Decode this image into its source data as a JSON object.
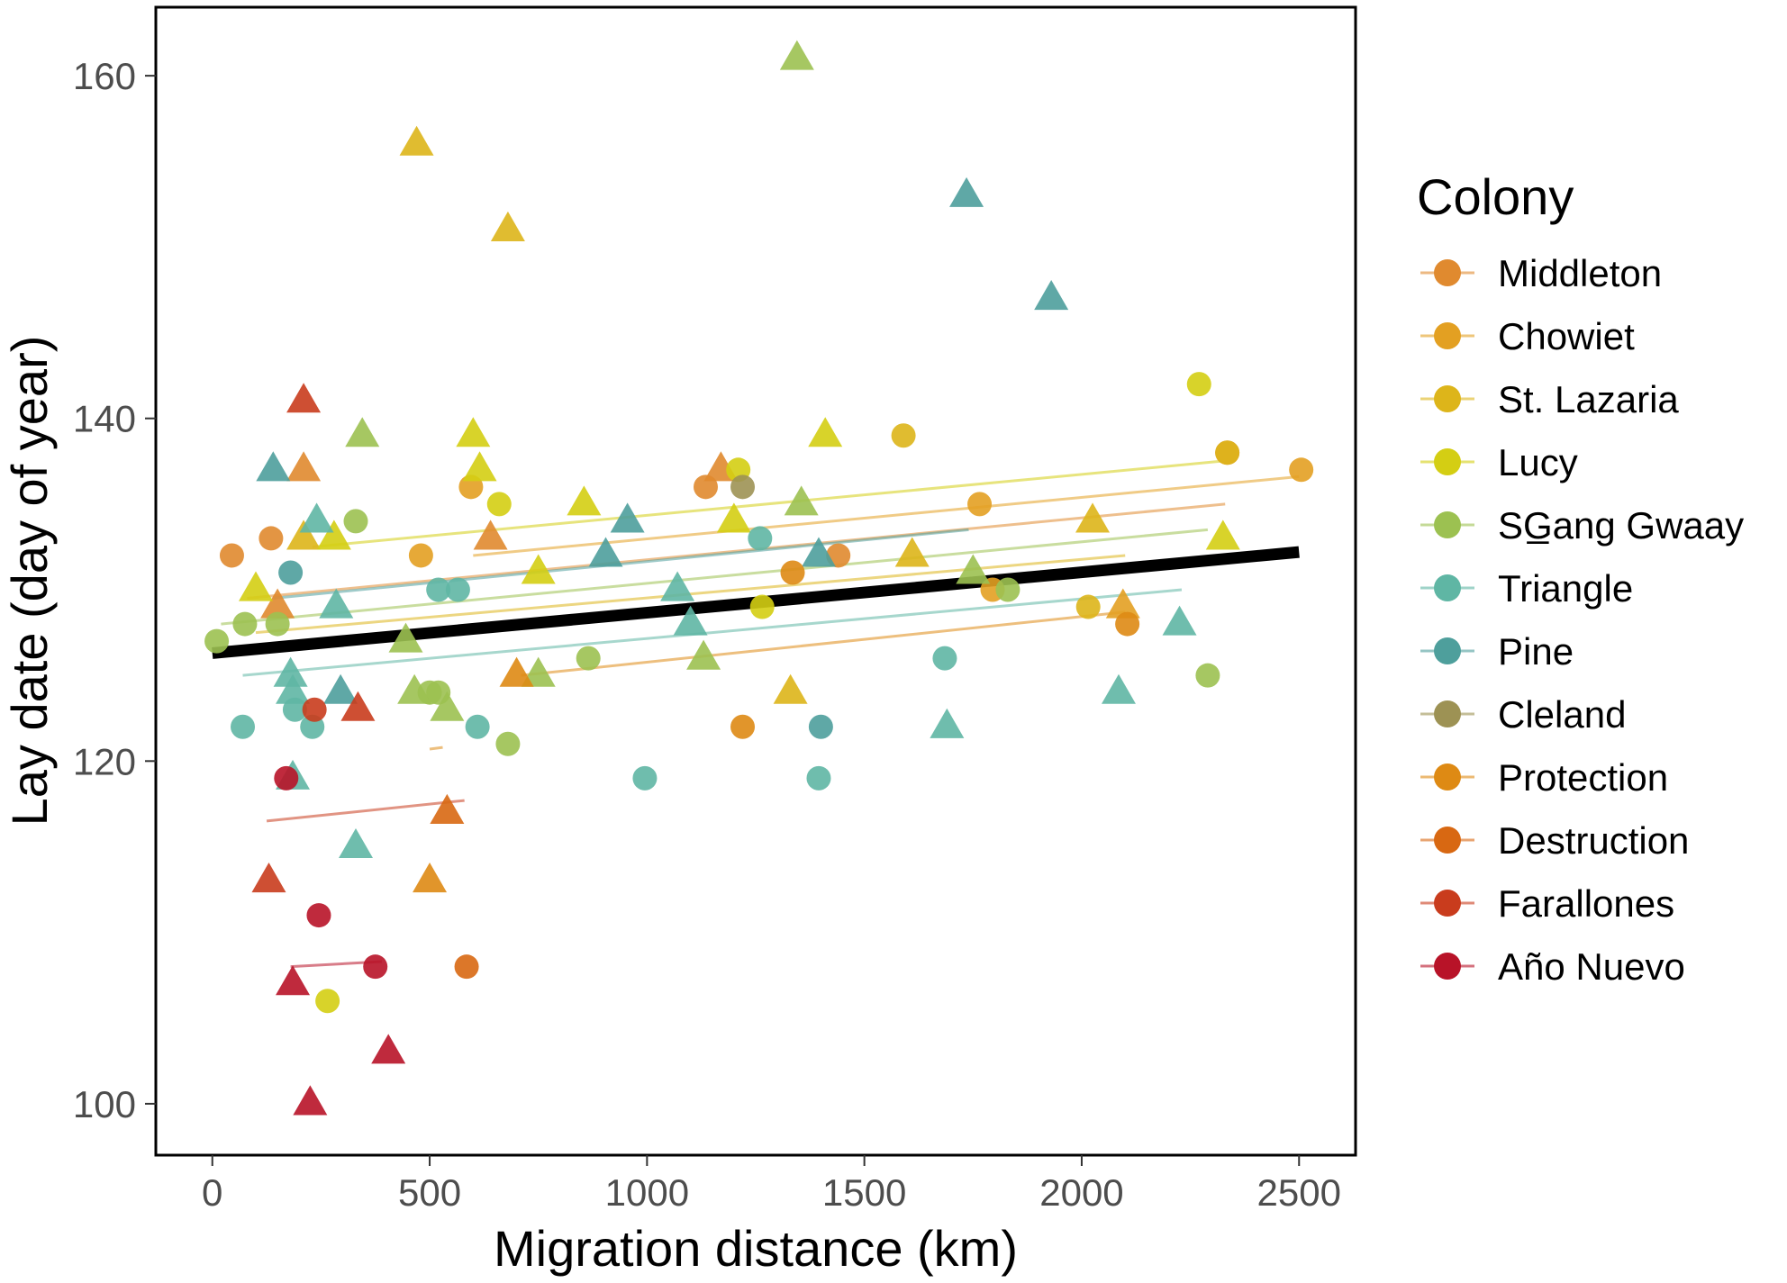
{
  "chart_data": {
    "type": "scatter",
    "xlabel": "Migration  distance (km)",
    "ylabel": "Lay date (day of year)",
    "xlim": [
      -130,
      2630
    ],
    "ylim": [
      97,
      164
    ],
    "x_ticks": [
      {
        "value": 0,
        "label": "0"
      },
      {
        "value": 500,
        "label": "500"
      },
      {
        "value": 1000,
        "label": "1000"
      },
      {
        "value": 1500,
        "label": "1500"
      },
      {
        "value": 2000,
        "label": "2000"
      },
      {
        "value": 2500,
        "label": "2500"
      }
    ],
    "y_ticks": [
      {
        "value": 100,
        "label": "100"
      },
      {
        "value": 120,
        "label": "120"
      },
      {
        "value": 140,
        "label": "140"
      },
      {
        "value": 160,
        "label": "160"
      }
    ],
    "grid": false,
    "legend": {
      "title": "Colony",
      "position": "right"
    },
    "point_shapes": {
      "circle": "circle",
      "triangle": "triangle"
    },
    "series": [
      {
        "name": "Middleton",
        "color": "#E08A2F",
        "points": [
          [
            45,
            132,
            "circle"
          ],
          [
            135,
            133,
            "circle"
          ],
          [
            1135,
            136,
            "circle"
          ],
          [
            1440,
            132,
            "circle"
          ],
          [
            2335,
            138,
            "circle"
          ],
          [
            150,
            129,
            "triangle"
          ],
          [
            210,
            137,
            "triangle"
          ],
          [
            640,
            133,
            "triangle"
          ],
          [
            1170,
            137,
            "triangle"
          ]
        ],
        "fit": [
          [
            80,
            129.5
          ],
          [
            2330,
            135
          ]
        ]
      },
      {
        "name": "Chowiet",
        "color": "#E3A022",
        "points": [
          [
            480,
            132,
            "circle"
          ],
          [
            595,
            136,
            "circle"
          ],
          [
            1765,
            135,
            "circle"
          ],
          [
            1795,
            130,
            "circle"
          ],
          [
            2505,
            137,
            "circle"
          ],
          [
            2095,
            129,
            "triangle"
          ]
        ],
        "fit": [
          [
            600,
            132
          ],
          [
            2500,
            136.6
          ]
        ]
      },
      {
        "name": "St. Lazaria",
        "color": "#DDB51A",
        "points": [
          [
            1590,
            139,
            "circle"
          ],
          [
            2335,
            138,
            "circle"
          ],
          [
            2015,
            129,
            "circle"
          ],
          [
            210,
            133,
            "triangle"
          ],
          [
            470,
            156,
            "triangle"
          ],
          [
            680,
            151,
            "triangle"
          ],
          [
            1330,
            124,
            "triangle"
          ],
          [
            1610,
            132,
            "triangle"
          ],
          [
            2025,
            134,
            "triangle"
          ]
        ],
        "fit": [
          [
            100,
            127.5
          ],
          [
            2100,
            132
          ]
        ]
      },
      {
        "name": "Lucy",
        "color": "#D4CE13",
        "points": [
          [
            265,
            106,
            "circle"
          ],
          [
            660,
            135,
            "circle"
          ],
          [
            1210,
            137,
            "circle"
          ],
          [
            1265,
            129,
            "circle"
          ],
          [
            2270,
            142,
            "circle"
          ],
          [
            100,
            130,
            "triangle"
          ],
          [
            280,
            133,
            "triangle"
          ],
          [
            600,
            139,
            "triangle"
          ],
          [
            615,
            137,
            "triangle"
          ],
          [
            750,
            131,
            "triangle"
          ],
          [
            855,
            135,
            "triangle"
          ],
          [
            1200,
            134,
            "triangle"
          ],
          [
            1410,
            139,
            "triangle"
          ],
          [
            2325,
            133,
            "triangle"
          ]
        ],
        "fit": [
          [
            230,
            132.5
          ],
          [
            2320,
            137.5
          ]
        ]
      },
      {
        "name": "SG̲ang Gwaay",
        "color": "#9CC151",
        "points": [
          [
            10,
            127,
            "circle"
          ],
          [
            75,
            128,
            "circle"
          ],
          [
            150,
            128,
            "circle"
          ],
          [
            330,
            134,
            "circle"
          ],
          [
            500,
            124,
            "circle"
          ],
          [
            520,
            124,
            "circle"
          ],
          [
            680,
            121,
            "circle"
          ],
          [
            865,
            126,
            "circle"
          ],
          [
            1830,
            130,
            "circle"
          ],
          [
            2290,
            125,
            "circle"
          ],
          [
            345,
            139,
            "triangle"
          ],
          [
            445,
            127,
            "triangle"
          ],
          [
            465,
            124,
            "triangle"
          ],
          [
            540,
            123,
            "triangle"
          ],
          [
            750,
            125,
            "triangle"
          ],
          [
            1130,
            126,
            "triangle"
          ],
          [
            1345,
            161,
            "triangle"
          ],
          [
            1355,
            135,
            "triangle"
          ],
          [
            1750,
            131,
            "triangle"
          ]
        ],
        "fit": [
          [
            20,
            128
          ],
          [
            2290,
            133.5
          ]
        ]
      },
      {
        "name": "Triangle",
        "color": "#5FB6A4",
        "points": [
          [
            70,
            122,
            "circle"
          ],
          [
            190,
            123,
            "circle"
          ],
          [
            230,
            122,
            "circle"
          ],
          [
            520,
            130,
            "circle"
          ],
          [
            565,
            130,
            "circle"
          ],
          [
            610,
            122,
            "circle"
          ],
          [
            995,
            119,
            "circle"
          ],
          [
            1260,
            133,
            "circle"
          ],
          [
            1395,
            119,
            "circle"
          ],
          [
            1685,
            126,
            "circle"
          ],
          [
            180,
            125,
            "triangle"
          ],
          [
            185,
            124,
            "triangle"
          ],
          [
            185,
            119,
            "triangle"
          ],
          [
            240,
            134,
            "triangle"
          ],
          [
            285,
            129,
            "triangle"
          ],
          [
            330,
            115,
            "triangle"
          ],
          [
            1070,
            130,
            "triangle"
          ],
          [
            1100,
            128,
            "triangle"
          ],
          [
            1690,
            122,
            "triangle"
          ],
          [
            2085,
            124,
            "triangle"
          ],
          [
            2225,
            128,
            "triangle"
          ]
        ],
        "fit": [
          [
            70,
            125
          ],
          [
            2230,
            130
          ]
        ]
      },
      {
        "name": "Pine",
        "color": "#4E9F9C",
        "points": [
          [
            180,
            131,
            "circle"
          ],
          [
            1400,
            122,
            "circle"
          ],
          [
            140,
            137,
            "triangle"
          ],
          [
            295,
            124,
            "triangle"
          ],
          [
            905,
            132,
            "triangle"
          ],
          [
            955,
            134,
            "triangle"
          ],
          [
            1395,
            132,
            "triangle"
          ],
          [
            1735,
            153,
            "triangle"
          ],
          [
            1930,
            147,
            "triangle"
          ]
        ],
        "fit": [
          [
            140,
            129.5
          ],
          [
            1740,
            133.5
          ]
        ]
      },
      {
        "name": "Cleland",
        "color": "#9D9254",
        "points": [
          [
            1220,
            136,
            "circle"
          ]
        ],
        "fit": []
      },
      {
        "name": "Protection",
        "color": "#DE8A14",
        "points": [
          [
            1220,
            122,
            "circle"
          ],
          [
            1335,
            131,
            "circle"
          ],
          [
            2105,
            128,
            "circle"
          ],
          [
            500,
            113,
            "triangle"
          ],
          [
            700,
            125,
            "triangle"
          ]
        ],
        "fit": [
          [
            500,
            120.7
          ],
          [
            530,
            120.8
          ],
          [
            710,
            125
          ],
          [
            2100,
            128.7
          ]
        ]
      },
      {
        "name": "Destruction",
        "color": "#D86812",
        "points": [
          [
            585,
            108,
            "circle"
          ],
          [
            540,
            117,
            "triangle"
          ]
        ],
        "fit": []
      },
      {
        "name": "Farallones",
        "color": "#C93C1D",
        "points": [
          [
            235,
            123,
            "circle"
          ],
          [
            130,
            113,
            "triangle"
          ],
          [
            210,
            141,
            "triangle"
          ],
          [
            335,
            123,
            "triangle"
          ]
        ],
        "fit": [
          [
            125,
            116.5
          ],
          [
            580,
            117.7
          ]
        ]
      },
      {
        "name": "Año Nuevo",
        "color": "#B81328",
        "points": [
          [
            170,
            119,
            "circle"
          ],
          [
            245,
            111,
            "circle"
          ],
          [
            375,
            108,
            "circle"
          ],
          [
            185,
            107,
            "triangle"
          ],
          [
            225,
            100,
            "triangle"
          ],
          [
            405,
            103,
            "triangle"
          ]
        ],
        "fit": [
          [
            180,
            108
          ],
          [
            390,
            108.3
          ]
        ]
      }
    ],
    "overall_fit": {
      "color": "#000000",
      "points": [
        [
          0,
          126.3
        ],
        [
          2500,
          132.2
        ]
      ]
    }
  }
}
